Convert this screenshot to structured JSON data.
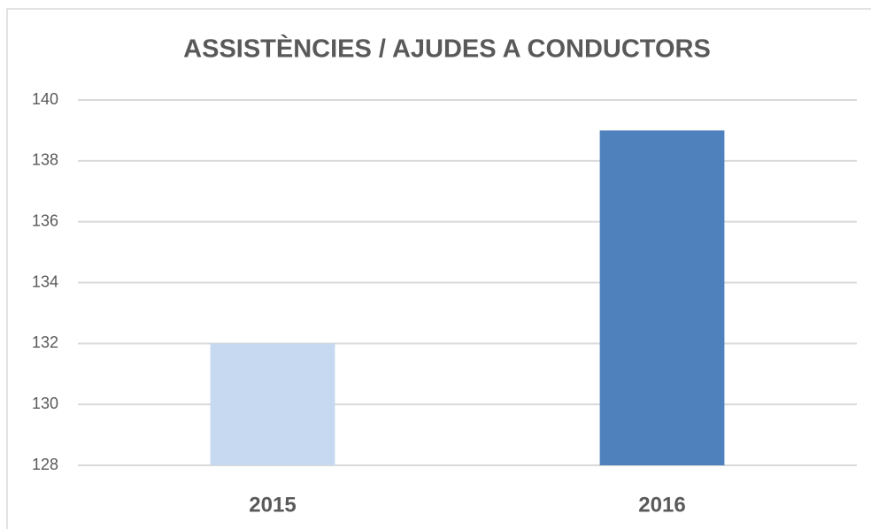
{
  "chart_data": {
    "type": "bar",
    "title": "ASSISTÈNCIES / AJUDES A CONDUCTORS",
    "categories": [
      "2015",
      "2016"
    ],
    "values": [
      132,
      139
    ],
    "colors": [
      "#c6d9f1",
      "#4f81bd"
    ],
    "ylim": [
      128,
      140
    ],
    "yticks": [
      128,
      130,
      132,
      134,
      136,
      138,
      140
    ],
    "grid": true
  }
}
